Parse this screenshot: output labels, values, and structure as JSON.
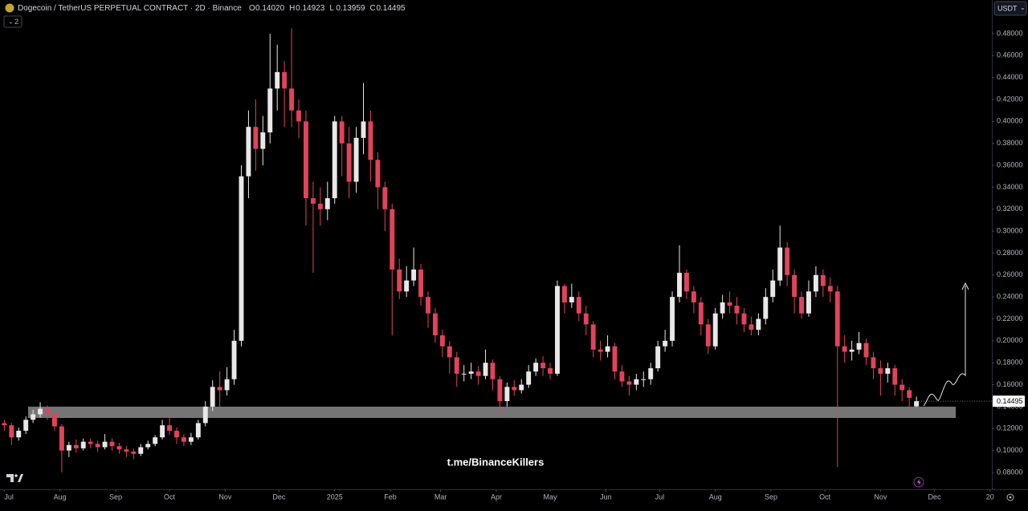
{
  "header": {
    "title": "Dogecoin / TetherUS PERPETUAL CONTRACT · 2D · Binance",
    "ohlc": [
      {
        "key": "O",
        "text": "0.14020"
      },
      {
        "key": "H",
        "text": "0.14923"
      },
      {
        "key": "L",
        "text": "0.13959"
      },
      {
        "key": "C",
        "text": "0.14495"
      }
    ],
    "indicator_count": "2",
    "currency": "USDT",
    "watermark": "t.me/BinanceKillers"
  },
  "chart_data": {
    "type": "candlestick",
    "up_color": "#e8e8e8",
    "down_color": "#e2435a",
    "grid": false,
    "xlim": [
      -0.6,
      137.5
    ],
    "ylim": [
      0.0646,
      0.5107
    ],
    "xticks": [
      {
        "value": 0,
        "label": "Jul"
      },
      {
        "value": 7.75,
        "label": "Aug"
      },
      {
        "value": 15.5,
        "label": "Sep"
      },
      {
        "value": 23,
        "label": "Oct"
      },
      {
        "value": 30.75,
        "label": "Nov"
      },
      {
        "value": 38.25,
        "label": "Dec"
      },
      {
        "value": 46,
        "label": "2025"
      },
      {
        "value": 53.75,
        "label": "Feb"
      },
      {
        "value": 60.75,
        "label": "Mar"
      },
      {
        "value": 68.5,
        "label": "Apr"
      },
      {
        "value": 76,
        "label": "May"
      },
      {
        "value": 83.75,
        "label": "Jun"
      },
      {
        "value": 91.25,
        "label": "Jul"
      },
      {
        "value": 99,
        "label": "Aug"
      },
      {
        "value": 106.75,
        "label": "Sep"
      },
      {
        "value": 114.25,
        "label": "Oct"
      },
      {
        "value": 122,
        "label": "Nov"
      },
      {
        "value": 129.5,
        "label": "Dec"
      },
      {
        "value": 137.25,
        "label": "20"
      }
    ],
    "yticks": [
      {
        "value": 0.08,
        "label": "0.08000"
      },
      {
        "value": 0.1,
        "label": "0.10000"
      },
      {
        "value": 0.12,
        "label": "0.12000"
      },
      {
        "value": 0.14,
        "label": "0.14000"
      },
      {
        "value": 0.16,
        "label": "0.16000"
      },
      {
        "value": 0.18,
        "label": "0.18000"
      },
      {
        "value": 0.2,
        "label": "0.20000"
      },
      {
        "value": 0.22,
        "label": "0.22000"
      },
      {
        "value": 0.24,
        "label": "0.24000"
      },
      {
        "value": 0.26,
        "label": "0.26000"
      },
      {
        "value": 0.28,
        "label": "0.28000"
      },
      {
        "value": 0.3,
        "label": "0.30000"
      },
      {
        "value": 0.32,
        "label": "0.32000"
      },
      {
        "value": 0.34,
        "label": "0.34000"
      },
      {
        "value": 0.36,
        "label": "0.36000"
      },
      {
        "value": 0.38,
        "label": "0.38000"
      },
      {
        "value": 0.4,
        "label": "0.40000"
      },
      {
        "value": 0.42,
        "label": "0.42000"
      },
      {
        "value": 0.44,
        "label": "0.44000"
      },
      {
        "value": 0.46,
        "label": "0.46000"
      },
      {
        "value": 0.48,
        "label": "0.48000"
      }
    ],
    "last_price": {
      "value": 0.14495,
      "label": "0.14495"
    },
    "zone": [
      0.1297,
      0.14
    ],
    "zone_color": "#8a8a8a",
    "open": [
      0.125,
      0.123,
      0.112,
      0.118,
      0.128,
      0.133,
      0.138,
      0.133,
      0.122,
      0.1,
      0.105,
      0.102,
      0.108,
      0.106,
      0.103,
      0.108,
      0.104,
      0.101,
      0.099,
      0.097,
      0.103,
      0.106,
      0.112,
      0.123,
      0.118,
      0.112,
      0.108,
      0.112,
      0.125,
      0.14,
      0.158,
      0.155,
      0.165,
      0.2,
      0.35,
      0.395,
      0.375,
      0.39,
      0.43,
      0.445,
      0.43,
      0.41,
      0.4,
      0.33,
      0.325,
      0.32,
      0.33,
      0.4,
      0.38,
      0.345,
      0.385,
      0.4,
      0.365,
      0.34,
      0.32,
      0.265,
      0.245,
      0.255,
      0.265,
      0.24,
      0.225,
      0.205,
      0.195,
      0.185,
      0.17,
      0.17,
      0.172,
      0.168,
      0.18,
      0.165,
      0.145,
      0.158,
      0.155,
      0.16,
      0.172,
      0.18,
      0.175,
      0.17,
      0.25,
      0.235,
      0.24,
      0.225,
      0.215,
      0.192,
      0.19,
      0.195,
      0.172,
      0.163,
      0.16,
      0.165,
      0.165,
      0.175,
      0.195,
      0.2,
      0.24,
      0.262,
      0.245,
      0.235,
      0.215,
      0.195,
      0.225,
      0.235,
      0.232,
      0.225,
      0.215,
      0.21,
      0.22,
      0.24,
      0.255,
      0.285,
      0.26,
      0.24,
      0.225,
      0.245,
      0.26,
      0.25,
      0.245,
      0.195,
      0.19,
      0.192,
      0.198,
      0.185,
      0.175,
      0.17,
      0.175,
      0.16,
      0.155,
      0.1402
    ],
    "high": [
      0.128,
      0.125,
      0.121,
      0.131,
      0.137,
      0.144,
      0.141,
      0.136,
      0.124,
      0.108,
      0.11,
      0.111,
      0.111,
      0.109,
      0.115,
      0.111,
      0.107,
      0.104,
      0.102,
      0.106,
      0.109,
      0.114,
      0.128,
      0.131,
      0.121,
      0.115,
      0.116,
      0.128,
      0.145,
      0.164,
      0.172,
      0.176,
      0.21,
      0.36,
      0.41,
      0.42,
      0.405,
      0.48,
      0.47,
      0.455,
      0.485,
      0.42,
      0.41,
      0.345,
      0.34,
      0.345,
      0.405,
      0.405,
      0.395,
      0.395,
      0.435,
      0.41,
      0.372,
      0.345,
      0.325,
      0.275,
      0.268,
      0.285,
      0.27,
      0.245,
      0.23,
      0.21,
      0.2,
      0.19,
      0.178,
      0.18,
      0.177,
      0.192,
      0.183,
      0.168,
      0.162,
      0.164,
      0.165,
      0.178,
      0.184,
      0.186,
      0.18,
      0.255,
      0.252,
      0.252,
      0.245,
      0.232,
      0.218,
      0.2,
      0.205,
      0.198,
      0.178,
      0.168,
      0.17,
      0.172,
      0.18,
      0.2,
      0.21,
      0.245,
      0.287,
      0.265,
      0.25,
      0.24,
      0.22,
      0.23,
      0.242,
      0.245,
      0.24,
      0.23,
      0.222,
      0.225,
      0.248,
      0.265,
      0.305,
      0.29,
      0.265,
      0.245,
      0.255,
      0.268,
      0.265,
      0.258,
      0.25,
      0.205,
      0.2,
      0.208,
      0.202,
      0.19,
      0.182,
      0.18,
      0.178,
      0.165,
      0.158,
      0.14923
    ],
    "low": [
      0.118,
      0.105,
      0.109,
      0.115,
      0.125,
      0.13,
      0.128,
      0.118,
      0.08,
      0.094,
      0.098,
      0.1,
      0.102,
      0.099,
      0.101,
      0.1,
      0.097,
      0.094,
      0.092,
      0.095,
      0.101,
      0.104,
      0.11,
      0.114,
      0.106,
      0.104,
      0.105,
      0.11,
      0.122,
      0.136,
      0.14,
      0.15,
      0.16,
      0.195,
      0.33,
      0.355,
      0.36,
      0.38,
      0.41,
      0.395,
      0.395,
      0.385,
      0.305,
      0.262,
      0.305,
      0.31,
      0.325,
      0.35,
      0.33,
      0.335,
      0.37,
      0.345,
      0.32,
      0.3,
      0.205,
      0.238,
      0.24,
      0.25,
      0.232,
      0.212,
      0.198,
      0.185,
      0.17,
      0.158,
      0.163,
      0.165,
      0.16,
      0.165,
      0.155,
      0.13,
      0.14,
      0.15,
      0.152,
      0.157,
      0.168,
      0.168,
      0.165,
      0.168,
      0.225,
      0.23,
      0.218,
      0.205,
      0.185,
      0.182,
      0.185,
      0.165,
      0.158,
      0.15,
      0.155,
      0.158,
      0.16,
      0.172,
      0.19,
      0.195,
      0.235,
      0.238,
      0.225,
      0.205,
      0.188,
      0.192,
      0.22,
      0.225,
      0.215,
      0.208,
      0.205,
      0.205,
      0.215,
      0.235,
      0.25,
      0.25,
      0.225,
      0.22,
      0.222,
      0.24,
      0.24,
      0.235,
      0.085,
      0.18,
      0.182,
      0.188,
      0.178,
      0.165,
      0.15,
      0.162,
      0.15,
      0.145,
      0.138,
      0.13959
    ],
    "close": [
      0.123,
      0.112,
      0.118,
      0.128,
      0.133,
      0.138,
      0.133,
      0.122,
      0.1,
      0.105,
      0.102,
      0.108,
      0.106,
      0.103,
      0.108,
      0.104,
      0.101,
      0.099,
      0.097,
      0.103,
      0.106,
      0.112,
      0.123,
      0.118,
      0.112,
      0.108,
      0.112,
      0.125,
      0.14,
      0.158,
      0.155,
      0.165,
      0.2,
      0.35,
      0.395,
      0.375,
      0.39,
      0.43,
      0.445,
      0.43,
      0.41,
      0.4,
      0.33,
      0.325,
      0.32,
      0.33,
      0.4,
      0.38,
      0.345,
      0.385,
      0.4,
      0.365,
      0.34,
      0.32,
      0.265,
      0.245,
      0.255,
      0.265,
      0.24,
      0.225,
      0.205,
      0.195,
      0.185,
      0.17,
      0.17,
      0.172,
      0.168,
      0.18,
      0.165,
      0.145,
      0.158,
      0.155,
      0.16,
      0.172,
      0.18,
      0.175,
      0.17,
      0.25,
      0.235,
      0.24,
      0.225,
      0.215,
      0.192,
      0.19,
      0.195,
      0.172,
      0.163,
      0.16,
      0.165,
      0.165,
      0.175,
      0.195,
      0.2,
      0.24,
      0.262,
      0.245,
      0.235,
      0.215,
      0.195,
      0.225,
      0.235,
      0.232,
      0.225,
      0.215,
      0.21,
      0.22,
      0.24,
      0.255,
      0.285,
      0.26,
      0.24,
      0.225,
      0.245,
      0.26,
      0.25,
      0.245,
      0.195,
      0.19,
      0.192,
      0.198,
      0.185,
      0.175,
      0.17,
      0.175,
      0.16,
      0.155,
      0.148,
      0.14495
    ]
  }
}
